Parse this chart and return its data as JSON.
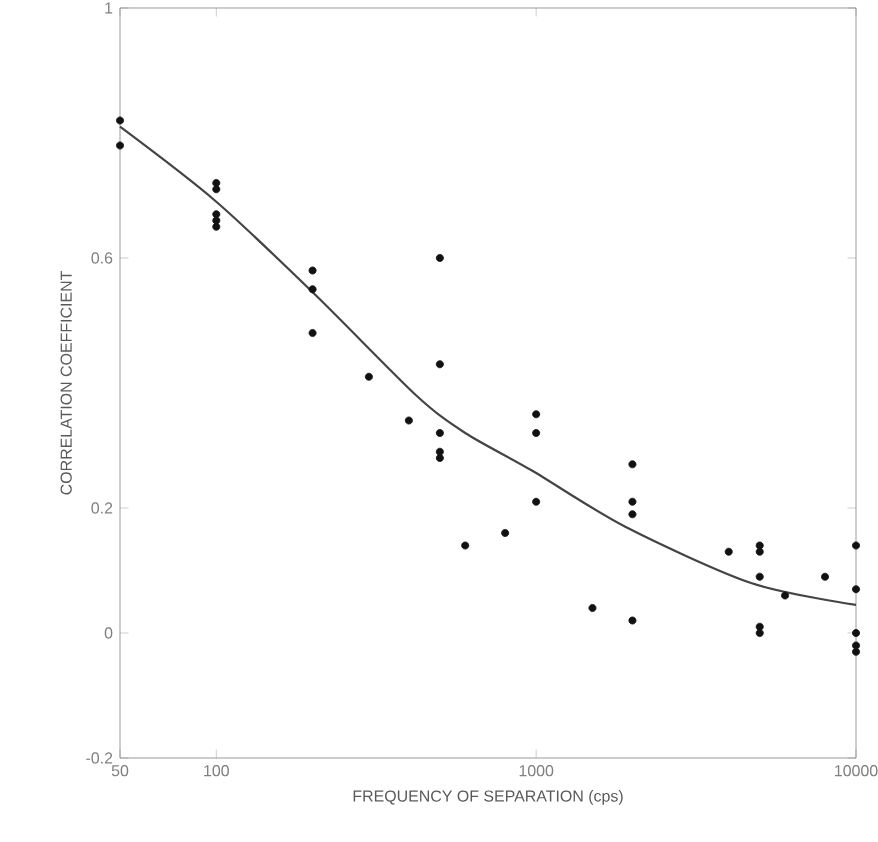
{
  "chart_data": {
    "type": "scatter",
    "xlabel": "FREQUENCY OF SEPARATION (cps)",
    "ylabel": "CORRELATION COEFFICIENT",
    "log": "x",
    "xlim": [
      50,
      10000
    ],
    "ylim": [
      -0.2,
      1.0
    ],
    "xticks": [
      50,
      100,
      1000,
      10000
    ],
    "yticks": [
      -0.2,
      0,
      0.2,
      0.6,
      1
    ],
    "grid": false,
    "series": [
      {
        "marker": "circle",
        "color": "#111111",
        "x": [
          50,
          50,
          100,
          100,
          100,
          100,
          100,
          200,
          200,
          200,
          300,
          400,
          500,
          500,
          500,
          500,
          500,
          600,
          800,
          1000,
          1000,
          1000,
          1500,
          2000,
          2000,
          2000,
          2000,
          4000,
          5000,
          5000,
          5000,
          5000,
          5000,
          6000,
          8000,
          10000,
          10000,
          10000,
          10000,
          10000
        ],
        "values": [
          0.82,
          0.78,
          0.72,
          0.71,
          0.67,
          0.66,
          0.65,
          0.58,
          0.55,
          0.48,
          0.41,
          0.34,
          0.6,
          0.43,
          0.32,
          0.29,
          0.28,
          0.14,
          0.16,
          0.35,
          0.32,
          0.21,
          0.04,
          0.27,
          0.21,
          0.19,
          0.02,
          0.13,
          0.14,
          0.13,
          0.09,
          0.01,
          0.0,
          0.06,
          0.09,
          0.14,
          0.07,
          0.0,
          -0.02,
          -0.03
        ]
      },
      {
        "type": "line",
        "color": "#444444",
        "marker": "none",
        "x": [
          50,
          100,
          205,
          422,
          600,
          970,
          1900,
          4700,
          10000
        ],
        "values": [
          0.81,
          0.69,
          0.54,
          0.38,
          0.32,
          0.26,
          0.17,
          0.08,
          0.045
        ]
      }
    ]
  }
}
